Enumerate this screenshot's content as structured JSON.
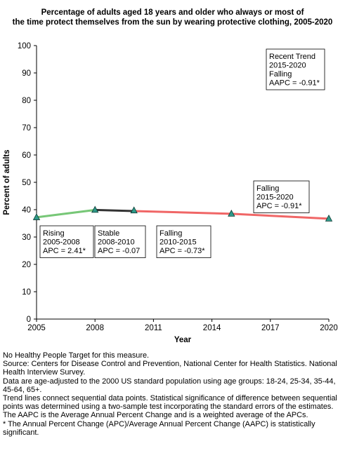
{
  "chart_data": {
    "type": "line",
    "title": "Percentage of adults aged 18 years and older who always or most of the time protect themselves from the sun by wearing protective clothing, 2005-2020",
    "title_lines": [
      "Percentage of adults aged 18 years and older who always or most of",
      "the time protect themselves from the sun by wearing protective clothing, 2005-2020"
    ],
    "xlabel": "Year",
    "ylabel": "Percent of adults",
    "xlim": [
      2005,
      2020
    ],
    "ylim": [
      0,
      100
    ],
    "x_ticks": [
      2005,
      2008,
      2011,
      2014,
      2017,
      2020
    ],
    "y_ticks": [
      0,
      10,
      20,
      30,
      40,
      50,
      60,
      70,
      80,
      90,
      100
    ],
    "grid": false,
    "points": [
      {
        "x": 2005,
        "y": 37.2
      },
      {
        "x": 2008,
        "y": 39.9
      },
      {
        "x": 2010,
        "y": 39.7
      },
      {
        "x": 2015,
        "y": 38.5
      },
      {
        "x": 2020,
        "y": 36.7
      }
    ],
    "trend_segments": [
      {
        "x": [
          2005,
          2008
        ],
        "y": [
          37.2,
          39.9
        ],
        "color": "#77c777",
        "label": [
          "Rising",
          "2005-2008",
          "APC =  2.41*"
        ]
      },
      {
        "x": [
          2008,
          2010
        ],
        "y": [
          39.9,
          39.5
        ],
        "color": "#333333",
        "label": [
          "Stable",
          "2008-2010",
          "APC = -0.07"
        ]
      },
      {
        "x": [
          2010,
          2015
        ],
        "y": [
          39.5,
          38.5
        ],
        "color": "#f06666",
        "label": [
          "Falling",
          "2010-2015",
          "APC = -0.73*"
        ]
      },
      {
        "x": [
          2015,
          2020
        ],
        "y": [
          38.5,
          36.7
        ],
        "color": "#f06666",
        "label": [
          "Falling",
          "2015-2020",
          "APC = -0.91*"
        ]
      }
    ],
    "recent_trend_box": [
      "Recent Trend",
      "2015-2020",
      "Falling",
      "AAPC = -0.91*"
    ],
    "marker_color": "#2f9a8a"
  },
  "footnotes": [
    "No Healthy People Target for this measure.",
    "Source: Centers for Disease Control and Prevention, National Center for Health Statistics. National Health Interview Survey.",
    "Data are age-adjusted to the 2000 US standard population using age groups: 18-24, 25-34, 35-44, 45-64, 65+.",
    "Trend lines connect sequential data points. Statistical significance of difference between sequential points was determined using a two-sample test incorporating the standard errors of the estimates.",
    "The AAPC is the Average Annual Percent Change and is a weighted average of the APCs.",
    "* The Annual Percent Change (APC)/Average Annual Percent Change (AAPC) is statistically significant."
  ]
}
